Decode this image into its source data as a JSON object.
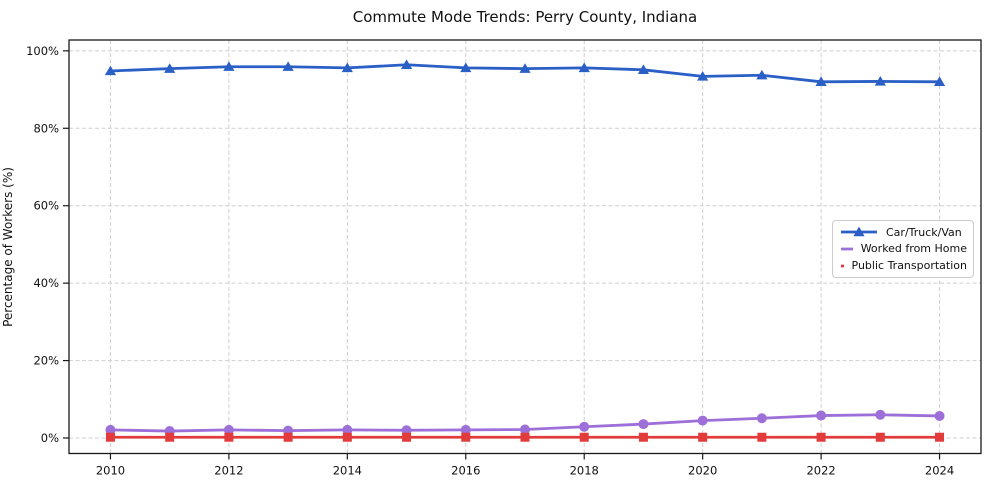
{
  "chart_data": {
    "type": "line",
    "title": "Commute Mode Trends: Perry County, Indiana",
    "xlabel": "",
    "ylabel": "Percentage of Workers (%)",
    "x": [
      2010,
      2011,
      2012,
      2013,
      2014,
      2015,
      2016,
      2017,
      2018,
      2019,
      2020,
      2021,
      2022,
      2023,
      2024
    ],
    "x_ticks": [
      2010,
      2012,
      2014,
      2016,
      2018,
      2020,
      2022,
      2024
    ],
    "y_ticks": [
      0,
      20,
      40,
      60,
      80,
      100
    ],
    "y_tick_suffix": "%",
    "xlim": [
      2009.3,
      2024.7
    ],
    "ylim": [
      -4,
      102.8
    ],
    "grid": true,
    "grid_style": "dashed",
    "grid_color": "#cfcfcf",
    "spine_color": "#1a1a1a",
    "legend_position": "center-right",
    "series": [
      {
        "name": "Car/Truck/Van",
        "color": "#2a5fc6",
        "marker": "triangle",
        "values": [
          94.8,
          95.4,
          95.9,
          95.9,
          95.6,
          96.4,
          95.6,
          95.4,
          95.6,
          95.1,
          93.4,
          93.7,
          92.0,
          92.1,
          92.0
        ]
      },
      {
        "name": "Worked from Home",
        "color": "#9d6fd9",
        "marker": "circle",
        "values": [
          2.1,
          1.8,
          2.1,
          1.9,
          2.1,
          2.0,
          2.1,
          2.2,
          2.9,
          3.6,
          4.5,
          5.1,
          5.8,
          6.0,
          5.7
        ]
      },
      {
        "name": "Public Transportation",
        "color": "#e13b3b",
        "marker": "square",
        "values": [
          0.2,
          0.2,
          0.2,
          0.2,
          0.2,
          0.2,
          0.2,
          0.2,
          0.2,
          0.2,
          0.2,
          0.2,
          0.2,
          0.2,
          0.2
        ]
      }
    ]
  }
}
